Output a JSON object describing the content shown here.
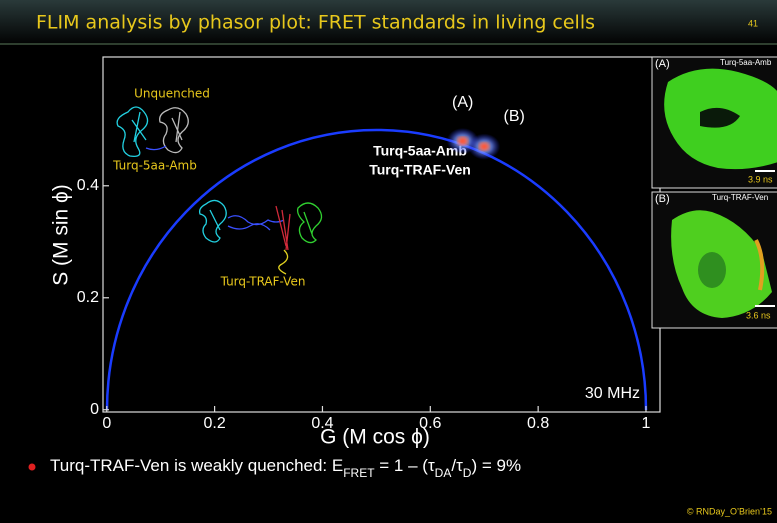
{
  "slide": {
    "title": "FLIM analysis by phasor plot: FRET standards in living cells",
    "page_number": "41",
    "bullet": [
      {
        "text": "Turq-TRAF-Ven is weakly quenched:  E",
        "sub": false
      },
      {
        "text": "FRET",
        "sub": true
      },
      {
        "text": " = 1 – (τ",
        "sub": false
      },
      {
        "text": "DA",
        "sub": true
      },
      {
        "text": "/τ",
        "sub": false
      },
      {
        "text": "D",
        "sub": true
      },
      {
        "text": ") = 9%",
        "sub": false
      }
    ],
    "credit": "© RNDay_O’Brien’15",
    "structure_labels": [
      "Unquenched",
      "Turq-5aa-Amb",
      "Turq-TRAF-Ven"
    ],
    "panels": [
      {
        "tag": "(A)",
        "name": "Turq-5aa-Amb",
        "lifetime": "3.9 ns"
      },
      {
        "tag": "(B)",
        "name": "Turq-TRAF-Ven",
        "lifetime": "3.6 ns"
      }
    ]
  },
  "chart_data": {
    "type": "scatter",
    "x_label": "G (M cos ϕ)",
    "y_label": "S (M sin ϕ)",
    "x": [
      0.66,
      0.7
    ],
    "values": [
      0.48,
      0.47
    ],
    "point_labels": [
      "(A)",
      "(B)"
    ],
    "color": "#ff4a2a",
    "annotations": [
      "Turq-5aa-Amb",
      "Turq-TRAF-Ven",
      "30 MHz"
    ],
    "xlim": [
      -0.007,
      1.026
    ],
    "ylim": [
      -0.004,
      0.63
    ],
    "xticks": [
      0,
      0.2,
      0.4,
      0.6,
      0.8,
      1
    ],
    "yticks": [
      0,
      0.2,
      0.4
    ],
    "grid": false
  }
}
